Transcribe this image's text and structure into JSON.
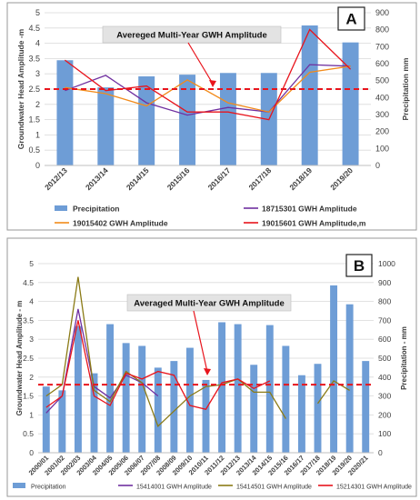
{
  "chart_data": [
    {
      "panel_label": "A",
      "type": "bar",
      "annotation": "Avereged Multi-Year GWH Amplitude",
      "ylabel_left": "Groundwater Head Amplitude -m",
      "ylabel_right": "Precipitation mm",
      "ylim_left": [
        0,
        5
      ],
      "yticks_left": [
        "0",
        "0.5",
        "1",
        "1.5",
        "2",
        "2.5",
        "3",
        "3.5",
        "4",
        "4.5",
        "5"
      ],
      "ylim_right": [
        0,
        900
      ],
      "yticks_right": [
        "0",
        "100",
        "200",
        "300",
        "400",
        "500",
        "600",
        "700",
        "800",
        "900"
      ],
      "categories": [
        "2012/13",
        "2013/14",
        "2014/15",
        "2015/16",
        "2016/17",
        "2017/18",
        "2018/19",
        "2019/20"
      ],
      "bars": {
        "name": "Precipitation",
        "color": "#6e9dd6",
        "values": [
          620,
          460,
          525,
          535,
          545,
          545,
          825,
          725
        ]
      },
      "average_line": {
        "value": 2.5,
        "color": "#e8141c"
      },
      "series": [
        {
          "name": "18715301 GWH Amplitude",
          "color": "#7030a0",
          "values": [
            2.45,
            2.95,
            2.05,
            1.65,
            1.9,
            1.75,
            3.3,
            3.25
          ]
        },
        {
          "name": "19015402 GWH Amplitude",
          "color": "#f28b1b",
          "values": [
            2.55,
            2.35,
            1.95,
            2.8,
            2.05,
            1.75,
            3.05,
            3.25
          ]
        },
        {
          "name": "19015601 GWH Amplitude,m",
          "color": "#e8141c",
          "values": [
            3.45,
            2.45,
            2.6,
            1.75,
            1.75,
            1.5,
            4.45,
            3.15
          ]
        }
      ],
      "legend": [
        "Precipitation",
        "18715301 GWH Amplitude",
        "19015402 GWH Amplitude",
        "19015601 GWH Amplitude,m"
      ]
    },
    {
      "panel_label": "B",
      "type": "bar",
      "annotation": "Averaged Multi-Year GWH Amplitude",
      "ylabel_left": "Groundwater Head Amplitude - m",
      "ylabel_right": "Precipitation - mm",
      "ylim_left": [
        0,
        5
      ],
      "yticks_left": [
        "0",
        "0.5",
        "1",
        "1.5",
        "2",
        "2.5",
        "3",
        "3.5",
        "4",
        "4.5",
        "5"
      ],
      "ylim_right": [
        0,
        1000
      ],
      "yticks_right": [
        "0",
        "100",
        "200",
        "300",
        "400",
        "500",
        "600",
        "700",
        "800",
        "900",
        "1000"
      ],
      "categories": [
        "2000/01",
        "2001/02",
        "2002/03",
        "2003/04",
        "2004/05",
        "2005/06",
        "2006/07",
        "2007/08",
        "2008/09",
        "2009/10",
        "2010/11",
        "2011/12",
        "2012/13",
        "2013/14",
        "2014/15",
        "2015/16",
        "2016/17",
        "2017/18",
        "2018/19",
        "2019/20",
        "2020/21"
      ],
      "bars": {
        "name": "Precipitation",
        "color": "#6e9dd6",
        "values": [
          350,
          330,
          670,
          420,
          680,
          580,
          565,
          450,
          485,
          555,
          385,
          690,
          680,
          465,
          675,
          565,
          410,
          470,
          885,
          785,
          485
        ]
      },
      "average_line": {
        "value": 1.8,
        "color": "#e8141c"
      },
      "series": [
        {
          "name": "15414001 GWH Amplitude",
          "color": "#7030a0",
          "values": [
            1.05,
            1.5,
            3.8,
            1.75,
            1.45,
            2.05,
            1.85,
            1.5,
            null,
            null,
            null,
            null,
            null,
            null,
            null,
            null,
            null,
            null,
            null,
            null,
            null
          ]
        },
        {
          "name": "15414501 GWH Amplitude",
          "color": "#8b7b16",
          "values": [
            1.5,
            1.8,
            4.65,
            1.65,
            1.35,
            2.15,
            1.85,
            0.7,
            1.1,
            1.5,
            1.75,
            1.8,
            1.95,
            1.6,
            1.6,
            0.9,
            null,
            1.3,
            1.9,
            1.65,
            null
          ]
        },
        {
          "name": "15214301 GWH Amplitude",
          "color": "#e8141c",
          "values": [
            1.2,
            1.5,
            3.5,
            1.5,
            1.25,
            2.1,
            1.95,
            2.15,
            2.05,
            1.25,
            1.15,
            1.85,
            1.95,
            1.7,
            1.9,
            null,
            null,
            null,
            1.8,
            null,
            null
          ]
        }
      ],
      "legend": [
        "Precipitation",
        "15414001 GWH Amplitude",
        "15414501 GWH Amplitude",
        "15214301 GWH Amplitude"
      ]
    }
  ]
}
